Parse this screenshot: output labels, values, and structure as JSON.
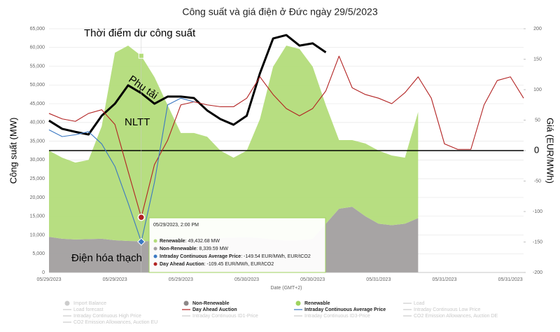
{
  "chart_data": {
    "type": "line",
    "stacked": true,
    "title": "Công suất và giá điện ở Đức ngày 29/5/2023",
    "y_label": "Công suất (MW)",
    "y2_label": "Giá (EUR/MWh)",
    "x_label": "Date (GMT+2)",
    "categories": [
      "05/29/2023",
      null,
      null,
      null,
      null,
      "05/29/2023",
      null,
      null,
      null,
      null,
      "05/29/2023",
      null,
      null,
      null,
      null,
      "05/30/2023",
      null,
      null,
      null,
      null,
      "05/30/2023",
      null,
      null,
      null,
      null,
      "05/31/2023",
      null,
      null,
      null,
      null,
      "05/31/2023",
      null,
      null,
      null,
      null,
      "05/31/2023",
      null
    ],
    "ylim": [
      0,
      65000
    ],
    "yticks": [
      0,
      {
        "value": 5000,
        "label": "5,000"
      },
      {
        "value": 10000,
        "label": "10,000"
      },
      {
        "value": 15000,
        "label": "15,000"
      },
      {
        "value": 20000,
        "label": "20,000"
      },
      {
        "value": 25000,
        "label": "25,000"
      },
      {
        "value": 30000,
        "label": "30,000"
      },
      {
        "value": 35000,
        "label": "35,000"
      },
      {
        "value": 40000,
        "label": "40,000"
      },
      {
        "value": 45000,
        "label": "45,000"
      },
      {
        "value": 50000,
        "label": "50,000"
      },
      {
        "value": 55000,
        "label": "55,000"
      },
      {
        "value": 60000,
        "label": "60,000"
      },
      {
        "value": 65000,
        "label": "65,000"
      }
    ],
    "y2lim": [
      -200,
      200
    ],
    "y2ticks": [
      -200,
      -150,
      -100,
      -50,
      0,
      50,
      100,
      150,
      200
    ],
    "grid": true,
    "series": [
      {
        "name": "Renewable",
        "type": "area",
        "color": "#b3dc7a",
        "values": [
          23000,
          21600,
          20500,
          21100,
          30000,
          50000,
          52100,
          49432.68,
          43700,
          36000,
          28400,
          28300,
          27200,
          23300,
          21300,
          23100,
          31700,
          46100,
          52000,
          51000,
          45900,
          31600,
          18300,
          17800,
          19400,
          19500,
          18600,
          17600,
          28300,
          null,
          null,
          null,
          null,
          null,
          null,
          null,
          null
        ]
      },
      {
        "name": "Non-Renewable",
        "type": "area",
        "color": "#a29f9f",
        "values": [
          9500,
          9000,
          8800,
          8900,
          9000,
          8600,
          8400,
          8339.59,
          8400,
          8600,
          8800,
          8900,
          9000,
          9200,
          9300,
          9400,
          9200,
          8800,
          8500,
          8600,
          9000,
          13000,
          17000,
          17500,
          15000,
          13000,
          12600,
          13000,
          14500,
          null,
          null,
          null,
          null,
          null,
          null,
          null,
          null
        ]
      },
      {
        "name": "Load",
        "type": "line",
        "color": "#000000",
        "values": [
          40500,
          38300,
          37500,
          36800,
          41800,
          45000,
          49900,
          47800,
          45000,
          46900,
          46900,
          46500,
          43200,
          40900,
          39400,
          41800,
          53100,
          62400,
          63300,
          60500,
          61100,
          58700,
          null,
          null,
          null,
          null,
          null,
          null,
          null,
          null,
          null,
          null,
          null,
          null,
          null,
          null,
          null
        ]
      },
      {
        "name": "Day Ahead Auction",
        "type": "line",
        "axis": "y2",
        "color": "#b22222",
        "values": [
          61,
          52,
          48,
          61,
          67,
          43,
          -34,
          -109.45,
          -23,
          17,
          75,
          80,
          75,
          72,
          72,
          86,
          121,
          92,
          69,
          57,
          69,
          98,
          155,
          103,
          92,
          86,
          77,
          95,
          121,
          86,
          11,
          2,
          2,
          75,
          115,
          121,
          86
        ]
      },
      {
        "name": "Intraday Continuous Average Price",
        "type": "line",
        "axis": "y2",
        "color": "#3a78c3",
        "values": [
          34,
          23,
          26,
          31,
          11,
          -26,
          -86,
          -149.54,
          -52,
          75,
          86,
          80,
          null,
          null,
          null,
          null,
          null,
          null,
          null,
          null,
          null,
          null,
          null,
          null,
          null,
          null,
          null,
          null,
          null,
          null,
          null,
          null,
          null,
          null,
          null,
          null,
          null
        ]
      }
    ],
    "annotations": [
      "Thời điểm dư công suất",
      "Phụ tải",
      "NLTT",
      "Điện hóa thạch"
    ],
    "tooltip": {
      "title": "05/29/2023, 2:00 PM",
      "items": [
        {
          "label": "Renewable",
          "text": ": 49,432.68 MW",
          "color": "#b3dc7a"
        },
        {
          "label": "Non-Renewable",
          "text": ": 8,339.59 MW",
          "color": "#a29f9f"
        },
        {
          "label": "Intraday Continuous Average Price",
          "text": ": -149.54 EUR/MWh, EUR/tCO2",
          "color": "#3a78c3"
        },
        {
          "label": "Day Ahead Auction",
          "text": ": -109.45 EUR/MWh, EUR/tCO2",
          "color": "#b22222"
        }
      ]
    },
    "legend": [
      {
        "name": "Import Balance",
        "color": "#cccccc",
        "hidden": true
      },
      {
        "name": "Non-Renewable",
        "color": "#8c8888",
        "hidden": false
      },
      {
        "name": "Renewable",
        "color": "#9fd35f",
        "hidden": false
      },
      {
        "name": "Load",
        "color": "#cccccc",
        "hidden": true
      },
      {
        "name": "Load forecast",
        "color": "#cccccc",
        "hidden": true
      },
      {
        "name": "Day Ahead Auction",
        "color": "#b22222",
        "hidden": false
      },
      {
        "name": "Intraday Continuous Average Price",
        "color": "#3a78c3",
        "hidden": false
      },
      {
        "name": "Intraday Continuous Low Price",
        "color": "#cccccc",
        "hidden": true
      },
      {
        "name": "Intraday Continuous High Price",
        "color": "#cccccc",
        "hidden": true
      },
      {
        "name": "Intraday Continuous ID1-Price",
        "color": "#cccccc",
        "hidden": true
      },
      {
        "name": "Intraday Continuous ID3-Price",
        "color": "#cccccc",
        "hidden": true
      },
      {
        "name": "CO2 Emission Allowances, Auction DE",
        "color": "#cccccc",
        "hidden": true
      },
      {
        "name": "CO2 Emission Allowances, Auction EU",
        "color": "#cccccc",
        "hidden": true
      }
    ]
  }
}
